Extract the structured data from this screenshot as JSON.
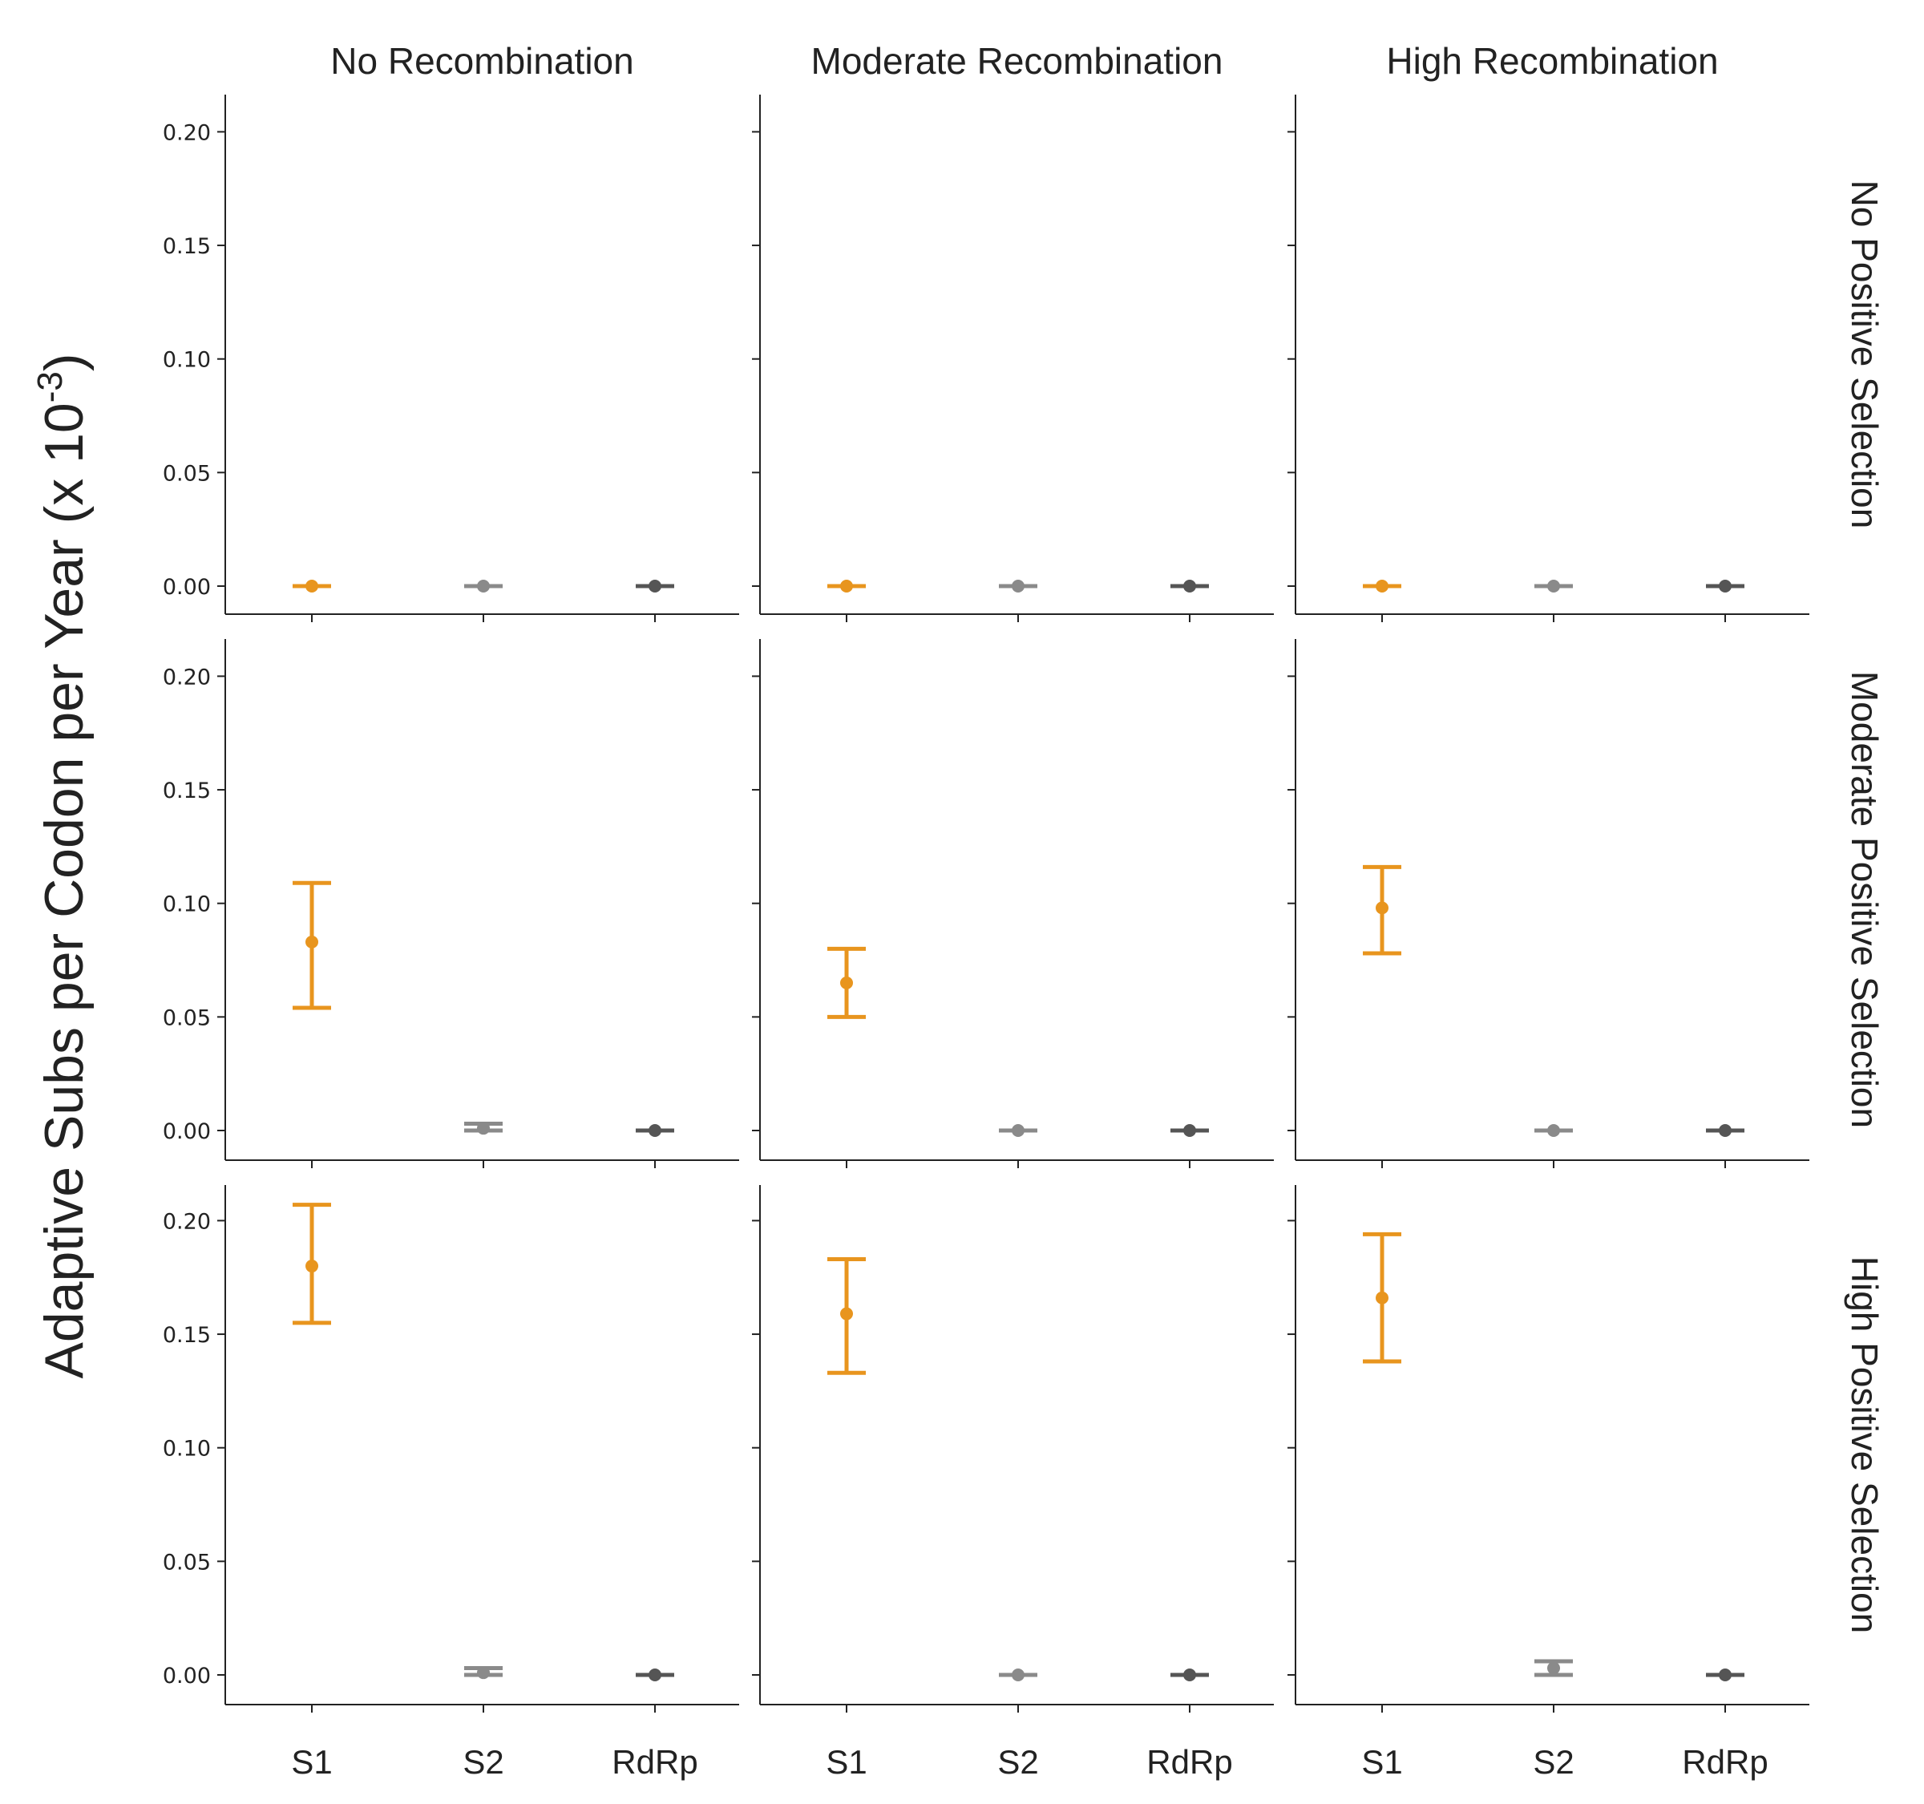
{
  "chart_data": {
    "type": "scatter",
    "subtype": "point-with-error-bars, faceted grid (3 rows x 3 columns)",
    "ylabel": "Adaptive Subs per Codon per Year (x 10",
    "ylabel_exponent": "-3",
    "ylabel_close": ")",
    "columns": [
      "No Recombination",
      "Moderate Recombination",
      "High Recombination"
    ],
    "rows": [
      "No Positive Selection",
      "Moderate Positive Selection",
      "High Positive Selection"
    ],
    "categories": [
      "S1",
      "S2",
      "RdRp"
    ],
    "series_colors": {
      "S1": "#E8951E",
      "S2": "#8A8A8A",
      "RdRp": "#555555"
    },
    "ylim": [
      -0.012,
      0.218
    ],
    "yticks": [
      0.0,
      0.05,
      0.1,
      0.15,
      0.2
    ],
    "ytick_labels": [
      "0.00",
      "0.05",
      "0.10",
      "0.15",
      "0.20"
    ],
    "grid": false,
    "panels": [
      {
        "row": 0,
        "col": 0,
        "points": [
          {
            "category": "S1",
            "mean": 0.0,
            "lower": 0.0,
            "upper": 0.0
          },
          {
            "category": "S2",
            "mean": 0.0,
            "lower": 0.0,
            "upper": 0.0
          },
          {
            "category": "RdRp",
            "mean": 0.0,
            "lower": 0.0,
            "upper": 0.0
          }
        ]
      },
      {
        "row": 0,
        "col": 1,
        "points": [
          {
            "category": "S1",
            "mean": 0.0,
            "lower": 0.0,
            "upper": 0.0
          },
          {
            "category": "S2",
            "mean": 0.0,
            "lower": 0.0,
            "upper": 0.0
          },
          {
            "category": "RdRp",
            "mean": 0.0,
            "lower": 0.0,
            "upper": 0.0
          }
        ]
      },
      {
        "row": 0,
        "col": 2,
        "points": [
          {
            "category": "S1",
            "mean": 0.0,
            "lower": 0.0,
            "upper": 0.0
          },
          {
            "category": "S2",
            "mean": 0.0,
            "lower": 0.0,
            "upper": 0.0
          },
          {
            "category": "RdRp",
            "mean": 0.0,
            "lower": 0.0,
            "upper": 0.0
          }
        ]
      },
      {
        "row": 1,
        "col": 0,
        "points": [
          {
            "category": "S1",
            "mean": 0.083,
            "lower": 0.054,
            "upper": 0.109
          },
          {
            "category": "S2",
            "mean": 0.001,
            "lower": 0.0,
            "upper": 0.003
          },
          {
            "category": "RdRp",
            "mean": 0.0,
            "lower": 0.0,
            "upper": 0.0
          }
        ]
      },
      {
        "row": 1,
        "col": 1,
        "points": [
          {
            "category": "S1",
            "mean": 0.065,
            "lower": 0.05,
            "upper": 0.08
          },
          {
            "category": "S2",
            "mean": 0.0,
            "lower": 0.0,
            "upper": 0.0
          },
          {
            "category": "RdRp",
            "mean": 0.0,
            "lower": 0.0,
            "upper": 0.0
          }
        ]
      },
      {
        "row": 1,
        "col": 2,
        "points": [
          {
            "category": "S1",
            "mean": 0.098,
            "lower": 0.078,
            "upper": 0.116
          },
          {
            "category": "S2",
            "mean": 0.0,
            "lower": 0.0,
            "upper": 0.0
          },
          {
            "category": "RdRp",
            "mean": 0.0,
            "lower": 0.0,
            "upper": 0.0
          }
        ]
      },
      {
        "row": 2,
        "col": 0,
        "points": [
          {
            "category": "S1",
            "mean": 0.18,
            "lower": 0.155,
            "upper": 0.207
          },
          {
            "category": "S2",
            "mean": 0.001,
            "lower": 0.0,
            "upper": 0.003
          },
          {
            "category": "RdRp",
            "mean": 0.0,
            "lower": 0.0,
            "upper": 0.0
          }
        ]
      },
      {
        "row": 2,
        "col": 1,
        "points": [
          {
            "category": "S1",
            "mean": 0.159,
            "lower": 0.133,
            "upper": 0.183
          },
          {
            "category": "S2",
            "mean": 0.0,
            "lower": 0.0,
            "upper": 0.0
          },
          {
            "category": "RdRp",
            "mean": 0.0,
            "lower": 0.0,
            "upper": 0.0
          }
        ]
      },
      {
        "row": 2,
        "col": 2,
        "points": [
          {
            "category": "S1",
            "mean": 0.166,
            "lower": 0.138,
            "upper": 0.194
          },
          {
            "category": "S2",
            "mean": 0.003,
            "lower": 0.0,
            "upper": 0.006
          },
          {
            "category": "RdRp",
            "mean": 0.0,
            "lower": 0.0,
            "upper": 0.0
          }
        ]
      }
    ]
  }
}
